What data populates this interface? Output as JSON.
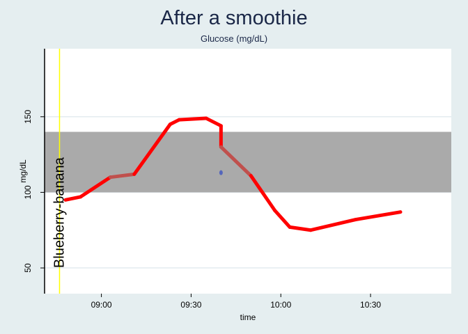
{
  "chart_data": {
    "type": "line",
    "title": "After a smoothie",
    "subtitle": "Glucose (mg/dL)",
    "xlabel": "time",
    "ylabel": "mg/dL",
    "x_ticks": [
      "09:00",
      "09:30",
      "10:00",
      "10:30"
    ],
    "y_ticks": [
      50,
      100,
      150
    ],
    "xlim": [
      "08:41",
      "10:57"
    ],
    "ylim": [
      33,
      195
    ],
    "grid": "horizontal",
    "target_range": [
      100,
      140
    ],
    "annotation": {
      "text": "Blueberry-banana",
      "time": "08:46"
    },
    "series": [
      {
        "values": [
          {
            "x": "08:48",
            "y": 95
          },
          {
            "x": "08:53",
            "y": 97
          },
          {
            "x": "09:03",
            "y": 110
          },
          {
            "x": "09:11",
            "y": 112
          },
          {
            "x": "09:23",
            "y": 145
          },
          {
            "x": "09:26",
            "y": 148
          },
          {
            "x": "09:35",
            "y": 149
          },
          {
            "x": "09:40",
            "y": 144
          },
          {
            "x": "09:40",
            "y": 130
          },
          {
            "x": "09:50",
            "y": 111
          },
          {
            "x": "09:58",
            "y": 88
          },
          {
            "x": "10:03",
            "y": 77
          },
          {
            "x": "10:10",
            "y": 75
          },
          {
            "x": "10:25",
            "y": 82
          },
          {
            "x": "10:40",
            "y": 87
          }
        ]
      }
    ],
    "points": [
      {
        "x": "09:40",
        "y": 113
      }
    ],
    "colors": {
      "background": "#e5eef0",
      "plot_area": "#ffffff",
      "target_band": "#aaaaaa",
      "line": "#ff0000",
      "line_in_range": "#c0504d",
      "point": "#5566bb",
      "annotation_line": "#ffff00",
      "grid": "#e3ecef"
    }
  }
}
